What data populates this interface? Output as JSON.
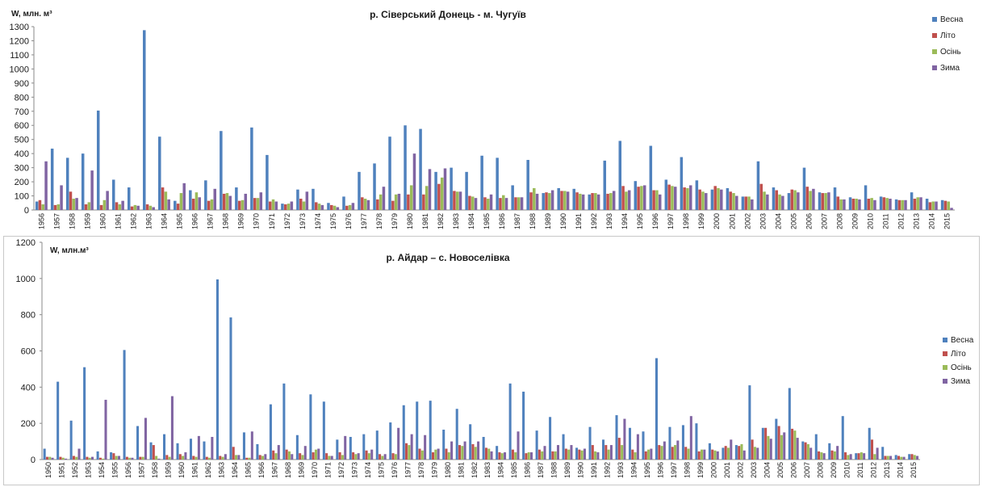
{
  "chart_data": [
    {
      "type": "bar",
      "title": "р. Сіверський Донець - м. Чугуїв",
      "ylabel": "W, млн. м³",
      "ylim": [
        0,
        1300
      ],
      "yticks": [
        0,
        100,
        200,
        300,
        400,
        500,
        600,
        700,
        800,
        900,
        1000,
        1100,
        1200,
        1300
      ],
      "grid": false,
      "legend_position": "top-right",
      "categories": [
        "1956",
        "1957",
        "1958",
        "1959",
        "1960",
        "1961",
        "1962",
        "1963",
        "1964",
        "1965",
        "1966",
        "1967",
        "1968",
        "1969",
        "1970",
        "1971",
        "1972",
        "1973",
        "1974",
        "1975",
        "1976",
        "1977",
        "1978",
        "1979",
        "1980",
        "1981",
        "1982",
        "1983",
        "1984",
        "1985",
        "1986",
        "1987",
        "1988",
        "1989",
        "1990",
        "1991",
        "1992",
        "1993",
        "1994",
        "1995",
        "1996",
        "1997",
        "1998",
        "1999",
        "2000",
        "2001",
        "2002",
        "2003",
        "2004",
        "2005",
        "2006",
        "2007",
        "2008",
        "2009",
        "2010",
        "2011",
        "2012",
        "2013",
        "2014",
        "2015"
      ],
      "series": [
        {
          "name": "Весна",
          "color": "#4f81bd",
          "values": [
            60,
            435,
            370,
            400,
            705,
            215,
            160,
            1275,
            520,
            65,
            140,
            210,
            560,
            160,
            585,
            390,
            45,
            145,
            150,
            50,
            95,
            270,
            330,
            520,
            600,
            575,
            270,
            300,
            270,
            385,
            370,
            175,
            355,
            120,
            155,
            150,
            110,
            350,
            490,
            205,
            455,
            215,
            375,
            210,
            145,
            155,
            95,
            345,
            160,
            120,
            300,
            125,
            160,
            90,
            175,
            95,
            75,
            125,
            80,
            70
          ]
        },
        {
          "name": "Літо",
          "color": "#c0504d",
          "values": [
            70,
            35,
            130,
            40,
            35,
            55,
            25,
            40,
            160,
            45,
            80,
            65,
            115,
            65,
            85,
            60,
            40,
            80,
            55,
            35,
            30,
            90,
            75,
            65,
            110,
            110,
            185,
            135,
            100,
            90,
            85,
            90,
            125,
            125,
            135,
            125,
            120,
            115,
            170,
            165,
            140,
            180,
            160,
            145,
            170,
            130,
            95,
            185,
            140,
            145,
            165,
            120,
            95,
            80,
            80,
            90,
            70,
            80,
            55,
            65
          ]
        },
        {
          "name": "Осінь",
          "color": "#9bbb59",
          "values": [
            40,
            40,
            80,
            55,
            70,
            40,
            35,
            30,
            130,
            120,
            125,
            75,
            120,
            70,
            85,
            75,
            45,
            60,
            45,
            30,
            35,
            80,
            110,
            110,
            175,
            170,
            230,
            130,
            95,
            80,
            105,
            90,
            155,
            120,
            135,
            115,
            120,
            120,
            130,
            170,
            140,
            170,
            155,
            130,
            155,
            120,
            95,
            130,
            110,
            140,
            135,
            120,
            75,
            80,
            85,
            85,
            70,
            90,
            60,
            60
          ]
        },
        {
          "name": "Зима",
          "color": "#8064a2",
          "values": [
            345,
            175,
            85,
            280,
            135,
            65,
            30,
            20,
            75,
            190,
            90,
            150,
            100,
            115,
            125,
            60,
            60,
            130,
            35,
            20,
            50,
            70,
            165,
            115,
            400,
            290,
            295,
            130,
            85,
            110,
            85,
            90,
            115,
            140,
            130,
            110,
            110,
            135,
            140,
            175,
            110,
            165,
            175,
            120,
            145,
            100,
            75,
            110,
            100,
            125,
            150,
            125,
            75,
            75,
            70,
            80,
            70,
            90,
            60,
            15
          ]
        }
      ]
    },
    {
      "type": "bar",
      "title": "р. Айдар – с. Новоселівка",
      "ylabel": "W, млн.м³",
      "ylim": [
        0,
        1200
      ],
      "yticks": [
        0,
        200,
        400,
        600,
        800,
        1000,
        1200
      ],
      "grid": false,
      "legend_position": "right",
      "categories": [
        "1950",
        "1951",
        "1952",
        "1953",
        "1954",
        "1955",
        "1956",
        "1957",
        "1958",
        "1959",
        "1960",
        "1961",
        "1962",
        "1963",
        "1964",
        "1965",
        "1966",
        "1967",
        "1968",
        "1969",
        "1970",
        "1971",
        "1972",
        "1973",
        "1974",
        "1975",
        "1976",
        "1977",
        "1978",
        "1979",
        "1980",
        "1981",
        "1982",
        "1983",
        "1984",
        "1985",
        "1986",
        "1987",
        "1988",
        "1989",
        "1990",
        "1991",
        "1992",
        "1993",
        "1994",
        "1995",
        "1996",
        "1997",
        "1998",
        "1999",
        "2000",
        "2001",
        "2002",
        "2003",
        "2004",
        "2005",
        "2006",
        "2007",
        "2008",
        "2009",
        "2010",
        "2011",
        "2012",
        "2013",
        "2014",
        "2015"
      ],
      "series": [
        {
          "name": "Весна",
          "color": "#4f81bd",
          "values": [
            60,
            430,
            215,
            510,
            45,
            40,
            605,
            185,
            95,
            140,
            90,
            115,
            100,
            995,
            785,
            150,
            85,
            305,
            420,
            135,
            360,
            320,
            110,
            125,
            140,
            160,
            205,
            300,
            320,
            325,
            165,
            280,
            195,
            125,
            75,
            420,
            375,
            160,
            235,
            140,
            65,
            180,
            110,
            245,
            175,
            155,
            560,
            180,
            190,
            200,
            90,
            65,
            80,
            410,
            175,
            225,
            395,
            100,
            140,
            90,
            240,
            35,
            175,
            70,
            25,
            30
          ]
        },
        {
          "name": "Літо",
          "color": "#c0504d",
          "values": [
            15,
            15,
            20,
            15,
            10,
            35,
            15,
            15,
            80,
            25,
            30,
            20,
            15,
            20,
            70,
            10,
            25,
            50,
            55,
            35,
            40,
            35,
            40,
            40,
            50,
            30,
            35,
            90,
            60,
            40,
            60,
            80,
            85,
            65,
            40,
            55,
            35,
            55,
            45,
            60,
            55,
            80,
            80,
            120,
            55,
            45,
            80,
            70,
            70,
            45,
            55,
            75,
            75,
            110,
            175,
            185,
            170,
            95,
            45,
            50,
            40,
            35,
            110,
            20,
            20,
            30
          ]
        },
        {
          "name": "Осінь",
          "color": "#9bbb59",
          "values": [
            15,
            10,
            15,
            10,
            5,
            20,
            10,
            15,
            20,
            15,
            20,
            15,
            10,
            15,
            25,
            10,
            20,
            35,
            45,
            25,
            55,
            20,
            25,
            30,
            35,
            20,
            30,
            80,
            50,
            55,
            40,
            75,
            70,
            60,
            35,
            40,
            40,
            45,
            45,
            55,
            50,
            45,
            55,
            80,
            40,
            55,
            75,
            80,
            60,
            55,
            50,
            65,
            85,
            70,
            130,
            135,
            160,
            85,
            40,
            45,
            25,
            40,
            30,
            20,
            15,
            25
          ]
        },
        {
          "name": "Зима",
          "color": "#8064a2",
          "values": [
            10,
            5,
            60,
            15,
            330,
            20,
            10,
            230,
            5,
            350,
            40,
            130,
            125,
            30,
            25,
            155,
            30,
            80,
            30,
            75,
            60,
            20,
            130,
            35,
            55,
            30,
            175,
            140,
            135,
            60,
            100,
            100,
            100,
            45,
            40,
            155,
            40,
            75,
            80,
            80,
            60,
            40,
            80,
            225,
            140,
            60,
            100,
            105,
            240,
            55,
            45,
            110,
            50,
            65,
            115,
            150,
            120,
            65,
            35,
            75,
            30,
            35,
            65,
            20,
            15,
            20
          ]
        }
      ]
    }
  ]
}
